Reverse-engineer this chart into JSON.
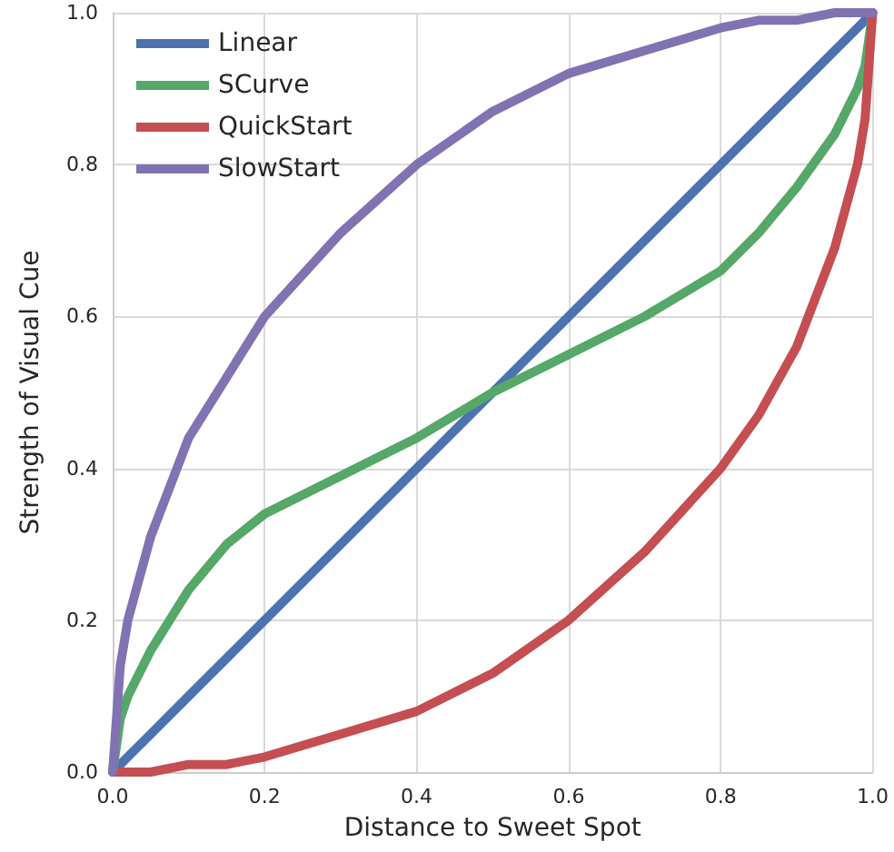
{
  "chart_data": {
    "type": "line",
    "xlabel": "Distance to Sweet Spot",
    "ylabel": "Strength of Visual Cue",
    "x": [
      0,
      0.01,
      0.02,
      0.05,
      0.1,
      0.15,
      0.2,
      0.3,
      0.4,
      0.5,
      0.6,
      0.7,
      0.8,
      0.85,
      0.9,
      0.95,
      0.98,
      0.99,
      1
    ],
    "series": [
      {
        "name": "Linear",
        "color": "#4c72b0",
        "values": [
          0,
          0.01,
          0.02,
          0.05,
          0.1,
          0.15,
          0.2,
          0.3,
          0.4,
          0.5,
          0.6,
          0.7,
          0.8,
          0.85,
          0.9,
          0.95,
          0.98,
          0.99,
          1
        ]
      },
      {
        "name": "SCurve",
        "color": "#55a868",
        "values": [
          0,
          0.07,
          0.1,
          0.16,
          0.24,
          0.3,
          0.34,
          0.39,
          0.44,
          0.5,
          0.55,
          0.6,
          0.66,
          0.71,
          0.77,
          0.84,
          0.9,
          0.93,
          1
        ]
      },
      {
        "name": "QuickStart",
        "color": "#c44e52",
        "values": [
          0,
          0,
          0,
          0,
          0.01,
          0.01,
          0.02,
          0.05,
          0.08,
          0.13,
          0.2,
          0.29,
          0.4,
          0.47,
          0.56,
          0.69,
          0.8,
          0.86,
          1
        ]
      },
      {
        "name": "SlowStart",
        "color": "#8172b2",
        "values": [
          0,
          0.14,
          0.2,
          0.31,
          0.44,
          0.52,
          0.6,
          0.71,
          0.8,
          0.87,
          0.92,
          0.95,
          0.98,
          0.99,
          0.99,
          1,
          1,
          1,
          1
        ]
      }
    ],
    "xlim": [
      0,
      1
    ],
    "ylim": [
      0,
      1
    ],
    "xticks": [
      {
        "value": 0,
        "label": "0.0"
      },
      {
        "value": 0.2,
        "label": "0.2"
      },
      {
        "value": 0.4,
        "label": "0.4"
      },
      {
        "value": 0.6,
        "label": "0.6"
      },
      {
        "value": 0.8,
        "label": "0.8"
      },
      {
        "value": 1,
        "label": "1.0"
      }
    ],
    "yticks": [
      {
        "value": 0,
        "label": "0.0"
      },
      {
        "value": 0.2,
        "label": "0.2"
      },
      {
        "value": 0.4,
        "label": "0.4"
      },
      {
        "value": 0.6,
        "label": "0.6"
      },
      {
        "value": 0.8,
        "label": "0.8"
      },
      {
        "value": 1,
        "label": "1.0"
      }
    ],
    "grid": true,
    "legend": "top left",
    "marker": "none",
    "line_style": "solid"
  }
}
